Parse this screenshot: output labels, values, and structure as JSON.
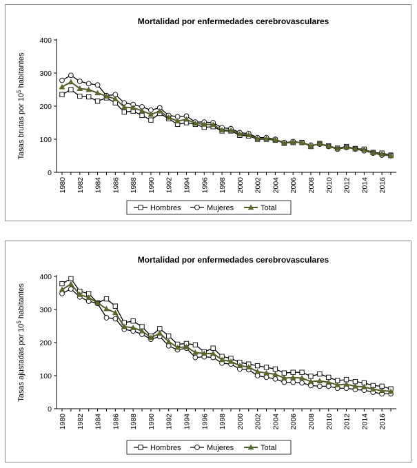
{
  "colors": {
    "hombres": "#000000",
    "mujeres": "#000000",
    "total": "#4f5b2d",
    "total_marker": "#5a6b2a",
    "frame": "#8c8c8c"
  },
  "chart_data": [
    {
      "type": "line",
      "title": "Mortalidad por enfermedades cerebrovasculares",
      "xlabel": "",
      "ylabel": "Tasas brutas por 10",
      "ylabel_sup": "5",
      "ylabel_tail": " habitantes",
      "ylim": [
        0,
        400
      ],
      "yticks": [
        0,
        100,
        200,
        300,
        400
      ],
      "x": [
        1980,
        1981,
        1982,
        1983,
        1984,
        1985,
        1986,
        1987,
        1988,
        1989,
        1990,
        1991,
        1992,
        1993,
        1994,
        1995,
        1996,
        1997,
        1998,
        1999,
        2000,
        2001,
        2002,
        2003,
        2004,
        2005,
        2006,
        2007,
        2008,
        2009,
        2010,
        2011,
        2012,
        2013,
        2014,
        2015,
        2016,
        2017
      ],
      "xticks": [
        1980,
        1982,
        1984,
        1986,
        1988,
        1990,
        1992,
        1994,
        1996,
        1998,
        2000,
        2002,
        2004,
        2006,
        2008,
        2010,
        2012,
        2014,
        2016
      ],
      "legend_position": "bottom",
      "grid": false,
      "series": [
        {
          "name": "Hombres",
          "marker": "square",
          "values": [
            235,
            250,
            230,
            228,
            215,
            225,
            210,
            182,
            185,
            172,
            158,
            178,
            162,
            145,
            150,
            145,
            136,
            138,
            125,
            125,
            112,
            110,
            100,
            100,
            97,
            88,
            90,
            90,
            78,
            87,
            80,
            73,
            78,
            72,
            70,
            60,
            58,
            52
          ]
        },
        {
          "name": "Mujeres",
          "marker": "circle",
          "values": [
            278,
            293,
            275,
            268,
            264,
            232,
            235,
            210,
            205,
            198,
            188,
            195,
            172,
            168,
            170,
            152,
            152,
            150,
            135,
            132,
            120,
            117,
            105,
            105,
            100,
            90,
            93,
            90,
            82,
            85,
            78,
            70,
            75,
            70,
            65,
            58,
            52,
            50
          ]
        },
        {
          "name": "Total",
          "marker": "triangle",
          "values": [
            258,
            273,
            253,
            250,
            240,
            230,
            222,
            197,
            195,
            186,
            175,
            185,
            166,
            155,
            160,
            148,
            145,
            144,
            128,
            127,
            116,
            113,
            102,
            102,
            99,
            89,
            92,
            90,
            80,
            86,
            79,
            72,
            76,
            71,
            68,
            59,
            55,
            50
          ]
        }
      ]
    },
    {
      "type": "line",
      "title": "Mortalidad por enfermedades cerebrovasculares",
      "xlabel": "",
      "ylabel": "Tasas ajustadas por 10",
      "ylabel_sup": "5",
      "ylabel_tail": " habitantes",
      "ylim": [
        0,
        400
      ],
      "yticks": [
        0,
        100,
        200,
        300,
        400
      ],
      "x": [
        1980,
        1981,
        1982,
        1983,
        1984,
        1985,
        1986,
        1987,
        1988,
        1989,
        1990,
        1991,
        1992,
        1993,
        1994,
        1995,
        1996,
        1997,
        1998,
        1999,
        2000,
        2001,
        2002,
        2003,
        2004,
        2005,
        2006,
        2007,
        2008,
        2009,
        2010,
        2011,
        2012,
        2013,
        2014,
        2015,
        2016,
        2017
      ],
      "xticks": [
        1980,
        1982,
        1984,
        1986,
        1988,
        1990,
        1992,
        1994,
        1996,
        1998,
        2000,
        2002,
        2004,
        2006,
        2008,
        2010,
        2012,
        2014,
        2016
      ],
      "legend_position": "bottom",
      "grid": false,
      "series": [
        {
          "name": "Hombres",
          "marker": "square",
          "values": [
            378,
            393,
            355,
            348,
            320,
            332,
            310,
            260,
            265,
            248,
            220,
            242,
            220,
            195,
            197,
            193,
            172,
            183,
            158,
            152,
            140,
            135,
            130,
            125,
            120,
            108,
            110,
            110,
            98,
            105,
            95,
            85,
            88,
            82,
            78,
            70,
            68,
            60
          ]
        },
        {
          "name": "Mujeres",
          "marker": "circle",
          "values": [
            348,
            362,
            338,
            325,
            318,
            275,
            272,
            240,
            235,
            225,
            210,
            218,
            190,
            178,
            183,
            155,
            157,
            155,
            138,
            135,
            120,
            118,
            100,
            95,
            90,
            80,
            80,
            78,
            70,
            68,
            68,
            62,
            62,
            58,
            56,
            50,
            45,
            45
          ]
        },
        {
          "name": "Total",
          "marker": "triangle",
          "values": [
            360,
            377,
            345,
            336,
            320,
            302,
            290,
            248,
            245,
            235,
            215,
            228,
            203,
            185,
            187,
            170,
            167,
            167,
            148,
            143,
            130,
            126,
            112,
            108,
            104,
            93,
            94,
            93,
            82,
            84,
            80,
            72,
            74,
            68,
            66,
            59,
            55,
            52
          ]
        }
      ]
    }
  ]
}
